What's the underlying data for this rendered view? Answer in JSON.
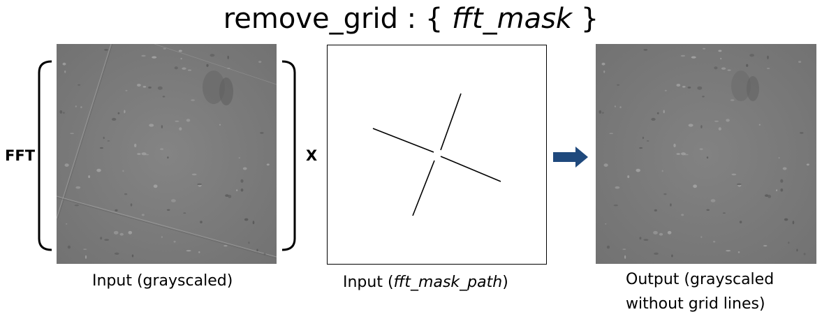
{
  "title": {
    "prefix": "remove_grid : { ",
    "param": "fft_mask",
    "suffix": " }"
  },
  "operator_label": "FFT",
  "multiply_symbol": "X",
  "input_caption": "Input (grayscaled)",
  "mask_caption": {
    "prefix": "Input (",
    "param": "fft_mask_path",
    "suffix": ")"
  },
  "output_caption": {
    "line1": "Output (grayscaled",
    "line2": "without grid lines)"
  },
  "colors": {
    "arrow": "#1f497d",
    "microscopy_bg": "#7b7b7b",
    "frame": "#000000"
  },
  "icons": {
    "arrow": "right-arrow-icon"
  }
}
